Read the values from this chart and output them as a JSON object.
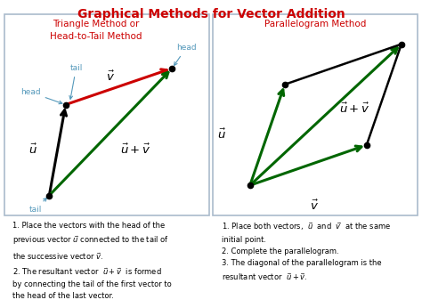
{
  "title": "Graphical Methods for Vector Addition",
  "title_color": "#cc0000",
  "title_fontsize": 10,
  "bg_color": "#ffffff",
  "border_color": "#aabbcc",
  "left_title": "Triangle Method or\nHead-to-Tail Method",
  "left_title_color": "#cc0000",
  "right_title": "Parallelogram Method",
  "right_title_color": "#cc0000",
  "cyan": "#5599bb",
  "black": "#111111",
  "red": "#cc0000",
  "green": "#006600",
  "left_desc": "1. Place the vectors with the head of the\nprevious vector $\\vec{u}$ connected to the tail of\nthe successive vector $\\vec{v}$.\n2. The resultant vector  $\\vec{u}+\\vec{v}$  is formed\nby connecting the tail of the first vector to\nthe head of the last vector.",
  "right_desc": "1. Place both vectors,  $\\vec{u}$  and  $\\vec{v}$  at the same\ninitial point.\n2. Complete the parallelogram.\n3. The diagonal of the parallelogram is the\nresultant vector  $\\vec{u}+\\vec{v}$."
}
